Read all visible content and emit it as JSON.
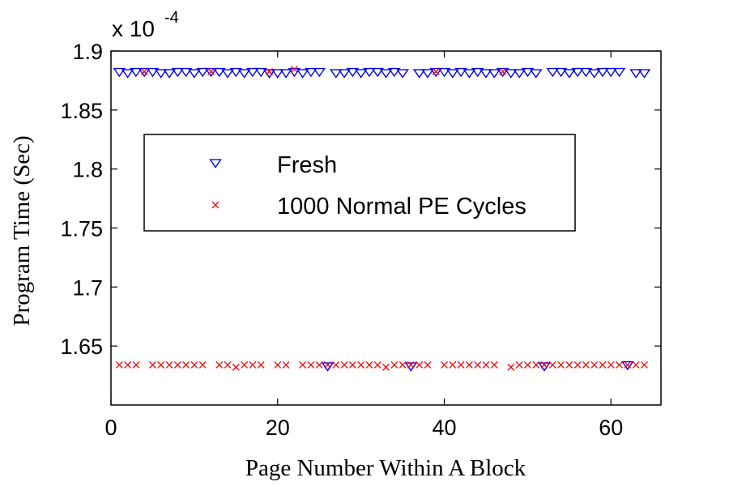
{
  "chart_data": {
    "type": "scatter",
    "title": "",
    "xlabel": "Page Number Within A Block",
    "ylabel": "Program Time (Sec)",
    "y_multiplier": {
      "base": "x 10",
      "exponent": "-4"
    },
    "xlim": [
      0,
      66
    ],
    "ylim": [
      1.6,
      1.9
    ],
    "xticks": [
      0,
      20,
      40,
      60
    ],
    "yticks": [
      1.65,
      1.7,
      1.75,
      1.8,
      1.85,
      1.9
    ],
    "xtick_labels": [
      "0",
      "20",
      "40",
      "60"
    ],
    "ytick_labels": [
      "1.65",
      "1.7",
      "1.75",
      "1.8",
      "1.85",
      "1.9"
    ],
    "grid": false,
    "legend_position": "center-left",
    "series": [
      {
        "name": "Fresh",
        "marker": "triangle-down",
        "color": "#0000ff",
        "x": [
          1,
          2,
          3,
          4,
          5,
          6,
          7,
          8,
          9,
          10,
          11,
          12,
          13,
          14,
          15,
          16,
          17,
          18,
          19,
          20,
          21,
          22,
          23,
          24,
          25,
          26,
          27,
          28,
          29,
          30,
          31,
          32,
          33,
          34,
          35,
          36,
          37,
          38,
          39,
          40,
          41,
          42,
          43,
          44,
          45,
          46,
          47,
          48,
          49,
          50,
          51,
          52,
          53,
          54,
          55,
          56,
          57,
          58,
          59,
          60,
          61,
          62,
          63,
          64
        ],
        "y": [
          1.8825,
          1.8815,
          1.8825,
          1.8825,
          1.8825,
          1.8815,
          1.8815,
          1.8825,
          1.8825,
          1.8815,
          1.8825,
          1.8825,
          1.8825,
          1.8815,
          1.8825,
          1.8815,
          1.8825,
          1.8825,
          1.8815,
          1.8815,
          1.8815,
          1.8825,
          1.8815,
          1.8825,
          1.8825,
          1.633,
          1.8815,
          1.8815,
          1.8825,
          1.8815,
          1.8825,
          1.8825,
          1.8815,
          1.8825,
          1.8815,
          1.633,
          1.8815,
          1.8815,
          1.8825,
          1.8825,
          1.8815,
          1.8825,
          1.8815,
          1.8825,
          1.8815,
          1.8815,
          1.8825,
          1.8815,
          1.8815,
          1.8825,
          1.8815,
          1.633,
          1.8825,
          1.8825,
          1.8815,
          1.8825,
          1.8825,
          1.8815,
          1.8825,
          1.8825,
          1.8825,
          1.634,
          1.8815,
          1.8815
        ]
      },
      {
        "name": "1000 Normal PE Cycles",
        "marker": "x",
        "color": "#ff0000",
        "x": [
          1,
          2,
          3,
          4,
          5,
          6,
          7,
          8,
          9,
          10,
          11,
          12,
          13,
          14,
          15,
          16,
          17,
          18,
          19,
          20,
          21,
          22,
          23,
          24,
          25,
          26,
          27,
          28,
          29,
          30,
          31,
          32,
          33,
          34,
          35,
          36,
          37,
          38,
          39,
          40,
          41,
          42,
          43,
          44,
          45,
          46,
          47,
          48,
          49,
          50,
          51,
          52,
          53,
          54,
          55,
          56,
          57,
          58,
          59,
          60,
          61,
          62,
          63,
          64
        ],
        "y": [
          1.634,
          1.634,
          1.634,
          1.8825,
          1.634,
          1.634,
          1.634,
          1.634,
          1.634,
          1.634,
          1.634,
          1.8825,
          1.634,
          1.634,
          1.632,
          1.634,
          1.634,
          1.634,
          1.8825,
          1.634,
          1.634,
          1.8845,
          1.634,
          1.634,
          1.634,
          1.634,
          1.634,
          1.634,
          1.634,
          1.634,
          1.634,
          1.634,
          1.632,
          1.634,
          1.634,
          1.634,
          1.634,
          1.634,
          1.8825,
          1.634,
          1.634,
          1.634,
          1.634,
          1.634,
          1.634,
          1.634,
          1.8825,
          1.632,
          1.634,
          1.634,
          1.634,
          1.634,
          1.634,
          1.634,
          1.634,
          1.634,
          1.634,
          1.634,
          1.634,
          1.634,
          1.634,
          1.634,
          1.634,
          1.634
        ]
      }
    ]
  }
}
